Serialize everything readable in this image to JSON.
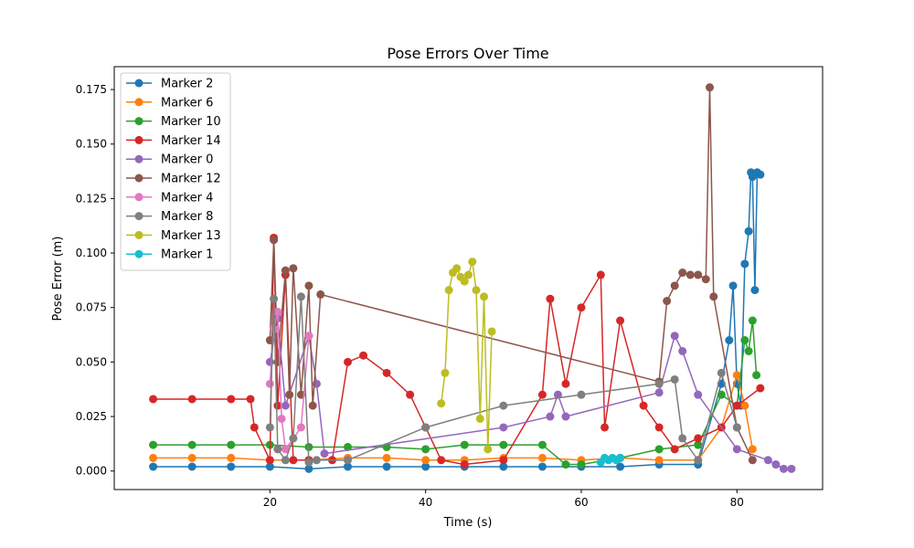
{
  "chart_data": {
    "type": "line",
    "title": "Pose Errors Over Time",
    "xlabel": "Time (s)",
    "ylabel": "Pose Error (m)",
    "xlim": [
      0,
      91
    ],
    "ylim": [
      -0.0085,
      0.1855
    ],
    "xticks": [
      20,
      40,
      60,
      80
    ],
    "yticks": [
      0.0,
      0.025,
      0.05,
      0.075,
      0.1,
      0.125,
      0.15,
      0.175
    ],
    "ytick_labels": [
      "0.000",
      "0.025",
      "0.050",
      "0.075",
      "0.100",
      "0.125",
      "0.150",
      "0.175"
    ],
    "legend_position": "upper-left",
    "grid": false,
    "series": [
      {
        "name": "Marker 2",
        "color": "#1f77b4",
        "x": [
          5,
          10,
          15,
          20,
          25,
          30,
          35,
          40,
          45,
          50,
          55,
          60,
          65,
          70,
          75,
          78,
          79,
          79.5,
          80,
          80.5,
          81,
          81.5,
          81.8,
          82,
          82.3,
          82.6,
          83
        ],
        "y": [
          0.002,
          0.002,
          0.002,
          0.002,
          0.001,
          0.002,
          0.002,
          0.002,
          0.002,
          0.002,
          0.002,
          0.002,
          0.002,
          0.003,
          0.003,
          0.04,
          0.06,
          0.085,
          0.04,
          0.03,
          0.095,
          0.11,
          0.137,
          0.135,
          0.083,
          0.137,
          0.136
        ]
      },
      {
        "name": "Marker 6",
        "color": "#ff7f0e",
        "x": [
          5,
          10,
          15,
          20,
          25,
          30,
          35,
          40,
          45,
          50,
          55,
          60,
          65,
          70,
          75,
          78,
          80,
          81,
          82
        ],
        "y": [
          0.006,
          0.006,
          0.006,
          0.005,
          0.005,
          0.006,
          0.006,
          0.005,
          0.005,
          0.006,
          0.006,
          0.005,
          0.006,
          0.005,
          0.005,
          0.02,
          0.044,
          0.03,
          0.01
        ]
      },
      {
        "name": "Marker 10",
        "color": "#2ca02c",
        "x": [
          5,
          10,
          15,
          20,
          25,
          30,
          35,
          40,
          45,
          50,
          55,
          58,
          60,
          65,
          70,
          75,
          78,
          80,
          81,
          81.5,
          82,
          82.5
        ],
        "y": [
          0.012,
          0.012,
          0.012,
          0.012,
          0.011,
          0.011,
          0.011,
          0.01,
          0.012,
          0.012,
          0.012,
          0.003,
          0.003,
          0.006,
          0.01,
          0.012,
          0.035,
          0.03,
          0.06,
          0.055,
          0.069,
          0.044
        ]
      },
      {
        "name": "Marker 14",
        "color": "#d62728",
        "x": [
          5,
          10,
          15,
          17.5,
          18,
          20,
          20.5,
          21,
          22,
          23,
          25,
          28,
          30,
          32,
          35,
          38,
          40,
          42,
          45,
          50,
          55,
          56,
          58,
          60,
          62.5,
          63,
          65,
          68,
          70,
          72,
          75,
          78,
          80,
          83
        ],
        "y": [
          0.033,
          0.033,
          0.033,
          0.033,
          0.02,
          0.005,
          0.107,
          0.03,
          0.09,
          0.005,
          0.005,
          0.005,
          0.05,
          0.053,
          0.045,
          0.035,
          0.02,
          0.005,
          0.003,
          0.005,
          0.035,
          0.079,
          0.04,
          0.075,
          0.09,
          0.02,
          0.069,
          0.03,
          0.02,
          0.01,
          0.015,
          0.02,
          0.03,
          0.038
        ]
      },
      {
        "name": "Marker 0",
        "color": "#9467bd",
        "x": [
          20,
          21,
          22,
          25,
          26,
          27,
          50,
          56,
          57,
          58,
          70,
          72,
          73,
          75,
          80,
          84,
          85,
          86,
          87
        ],
        "y": [
          0.05,
          0.07,
          0.03,
          0.062,
          0.04,
          0.008,
          0.02,
          0.025,
          0.035,
          0.025,
          0.036,
          0.062,
          0.055,
          0.035,
          0.01,
          0.005,
          0.003,
          0.001,
          0.001
        ]
      },
      {
        "name": "Marker 12",
        "color": "#8c564b",
        "x": [
          20,
          20.5,
          21,
          22,
          22.5,
          23,
          24,
          25,
          25.5,
          26.5,
          70,
          71,
          72,
          73,
          74,
          75,
          76,
          76.5,
          77,
          80,
          82
        ],
        "y": [
          0.06,
          0.106,
          0.05,
          0.092,
          0.035,
          0.093,
          0.035,
          0.085,
          0.03,
          0.081,
          0.041,
          0.078,
          0.085,
          0.091,
          0.09,
          0.09,
          0.088,
          0.176,
          0.08,
          0.02,
          0.005
        ]
      },
      {
        "name": "Marker 4",
        "color": "#e377c2",
        "x": [
          20,
          20.5,
          21,
          21.5,
          22,
          23,
          24,
          25
        ],
        "y": [
          0.04,
          0.065,
          0.073,
          0.024,
          0.01,
          0.015,
          0.02,
          0.062
        ]
      },
      {
        "name": "Marker 8",
        "color": "#7f7f7f",
        "x": [
          20,
          20.5,
          21,
          22,
          23,
          24,
          25,
          26,
          30,
          40,
          50,
          60,
          70,
          72,
          73,
          75,
          78,
          80
        ],
        "y": [
          0.02,
          0.079,
          0.01,
          0.005,
          0.015,
          0.08,
          0.004,
          0.005,
          0.005,
          0.02,
          0.03,
          0.035,
          0.04,
          0.042,
          0.015,
          0.005,
          0.045,
          0.02
        ]
      },
      {
        "name": "Marker 13",
        "color": "#bcbd22",
        "x": [
          42,
          42.5,
          43,
          43.5,
          44,
          44.5,
          45,
          45.5,
          46,
          46.5,
          47,
          47.5,
          48,
          48.5
        ],
        "y": [
          0.031,
          0.045,
          0.083,
          0.091,
          0.093,
          0.089,
          0.087,
          0.09,
          0.096,
          0.083,
          0.024,
          0.08,
          0.01,
          0.064
        ]
      },
      {
        "name": "Marker 1",
        "color": "#17becf",
        "x": [
          62.5,
          63,
          63.5,
          64,
          64.5,
          65
        ],
        "y": [
          0.004,
          0.006,
          0.005,
          0.006,
          0.005,
          0.006
        ]
      }
    ]
  }
}
